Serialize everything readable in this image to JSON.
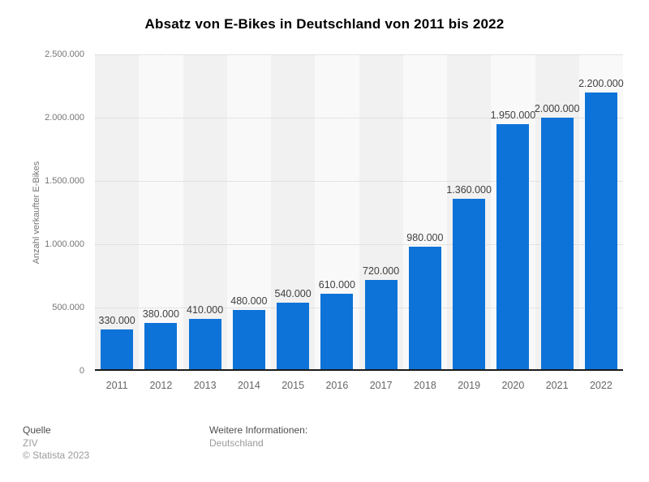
{
  "chart_data": {
    "type": "bar",
    "title": "Absatz von E-Bikes in Deutschland von 2011 bis 2022",
    "categories": [
      "2011",
      "2012",
      "2013",
      "2014",
      "2015",
      "2016",
      "2017",
      "2018",
      "2019",
      "2020",
      "2021",
      "2022"
    ],
    "values": [
      330000,
      380000,
      410000,
      480000,
      540000,
      610000,
      720000,
      980000,
      1360000,
      1950000,
      2000000,
      2200000
    ],
    "value_labels": [
      "330.000",
      "380.000",
      "410.000",
      "480.000",
      "540.000",
      "610.000",
      "720.000",
      "980.000",
      "1.360.000",
      "1.950.000",
      "2.000.000",
      "2.200.000"
    ],
    "xlabel": "",
    "ylabel": "Anzahl verkaufter E-Bikes",
    "ylim": [
      0,
      2500000
    ],
    "y_tick_step": 500000,
    "y_tick_labels": [
      "0",
      "500.000",
      "1.000.000",
      "1.500.000",
      "2.000.000",
      "2.500.000"
    ],
    "grid": "horizontal-dotted",
    "legend": "none",
    "bar_color": "#0d73d8",
    "band_colors": [
      "#f1f1f1",
      "#f9f9f9"
    ],
    "gridline_color": "#cfcfcf",
    "baseline_color": "#1a1a1a"
  },
  "footer": {
    "source_label": "Quelle",
    "source_value": "ZIV",
    "copyright": "© Statista 2023",
    "info_label": "Weitere Informationen:",
    "info_value": "Deutschland"
  }
}
